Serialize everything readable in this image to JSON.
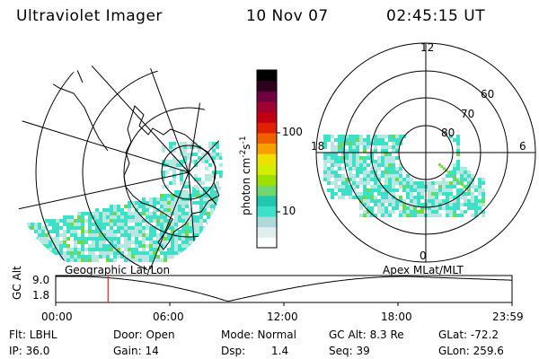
{
  "header": {
    "instrument": "Ultraviolet Imager",
    "date": "10 Nov 07",
    "time": "02:45:15 UT"
  },
  "left_map": {
    "caption": "Geographic Lat/Lon"
  },
  "right_map": {
    "caption": "Apex MLat/MLT",
    "mlt_labels": [
      "12",
      "18",
      "6",
      "0"
    ],
    "mlat_labels": [
      "60",
      "70",
      "80"
    ]
  },
  "colorbar": {
    "unit_label": "photon cm",
    "unit_sup1": "-2",
    "unit_mid": "s",
    "unit_sup2": "-1",
    "tick_labels": [
      "100",
      "10"
    ],
    "colors": [
      "#ffffff",
      "#e0eef0",
      "#b0d8d8",
      "#40e0c8",
      "#20c8b0",
      "#70d870",
      "#a0e000",
      "#d0f000",
      "#f0e000",
      "#f8a000",
      "#f06000",
      "#e02000",
      "#c00010",
      "#a00030",
      "#700040",
      "#300020",
      "#000000"
    ]
  },
  "alt_plot": {
    "ylabel": "GC Alt",
    "y_max_label": "9.0",
    "y_min_label": "1.8",
    "time_ticks": [
      "00:00",
      "06:00",
      "12:00",
      "18:00",
      "23:59"
    ],
    "marker_time_hours": 2.754,
    "marker_color": "#e02020"
  },
  "info": {
    "flt": "Flt: LBHL",
    "door": "Door: Open",
    "mode": "Mode: Normal",
    "gc_alt": "GC Alt: 8.3 Re",
    "glat": "GLat: -72.2",
    "ip": "IP: 36.0",
    "gain": "Gain: 14",
    "dsp_label": "Dsp:",
    "dsp_value": "1.4",
    "seq": "Seq: 39",
    "glon": "GLon: 259.6"
  },
  "colors": {
    "aurora": "#40e0c8",
    "aurora_light": "#b8e6e0",
    "aurora_green": "#6fd84f",
    "line": "#000000"
  }
}
